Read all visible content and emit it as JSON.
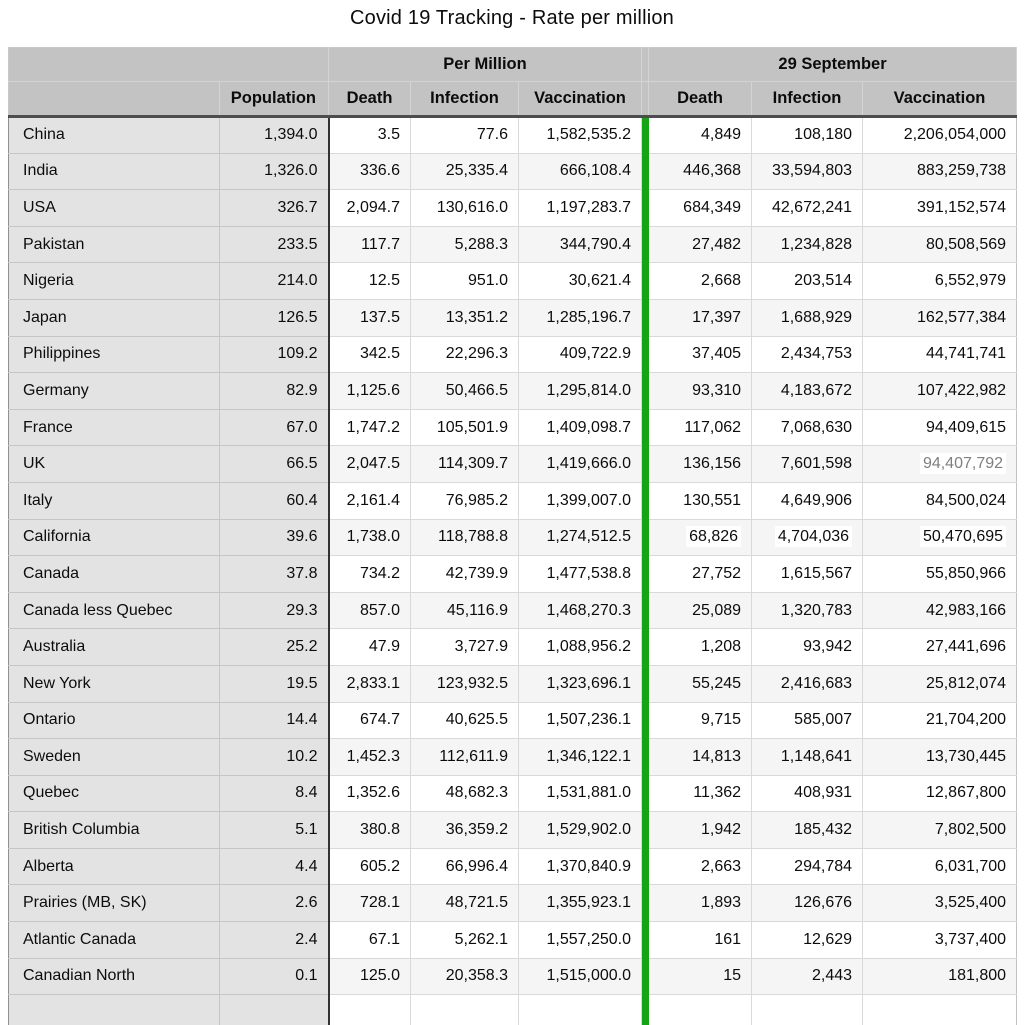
{
  "chart_data": {
    "type": "table",
    "title": "Covid 19 Tracking - Rate per million",
    "column_groups": {
      "per_million": "Per Million",
      "sep_29": "29 September"
    },
    "columns": {
      "population": "Population",
      "pm_death": "Death",
      "pm_infection": "Infection",
      "pm_vaccination": "Vaccination",
      "s_death": "Death",
      "s_infection": "Infection",
      "s_vaccination": "Vaccination"
    },
    "rows": [
      {
        "name": "China",
        "population": "1,394.0",
        "pm_death": "3.5",
        "pm_infection": "77.6",
        "pm_vaccination": "1,582,535.2",
        "s_death": "4,849",
        "s_infection": "108,180",
        "s_vaccination": "2,206,054,000"
      },
      {
        "name": "India",
        "population": "1,326.0",
        "pm_death": "336.6",
        "pm_infection": "25,335.4",
        "pm_vaccination": "666,108.4",
        "s_death": "446,368",
        "s_infection": "33,594,803",
        "s_vaccination": "883,259,738"
      },
      {
        "name": "USA",
        "population": "326.7",
        "pm_death": "2,094.7",
        "pm_infection": "130,616.0",
        "pm_vaccination": "1,197,283.7",
        "s_death": "684,349",
        "s_infection": "42,672,241",
        "s_vaccination": "391,152,574"
      },
      {
        "name": "Pakistan",
        "population": "233.5",
        "pm_death": "117.7",
        "pm_infection": "5,288.3",
        "pm_vaccination": "344,790.4",
        "s_death": "27,482",
        "s_infection": "1,234,828",
        "s_vaccination": "80,508,569"
      },
      {
        "name": "Nigeria",
        "population": "214.0",
        "pm_death": "12.5",
        "pm_infection": "951.0",
        "pm_vaccination": "30,621.4",
        "s_death": "2,668",
        "s_infection": "203,514",
        "s_vaccination": "6,552,979"
      },
      {
        "name": "Japan",
        "population": "126.5",
        "pm_death": "137.5",
        "pm_infection": "13,351.2",
        "pm_vaccination": "1,285,196.7",
        "s_death": "17,397",
        "s_infection": "1,688,929",
        "s_vaccination": "162,577,384"
      },
      {
        "name": "Philippines",
        "population": "109.2",
        "pm_death": "342.5",
        "pm_infection": "22,296.3",
        "pm_vaccination": "409,722.9",
        "s_death": "37,405",
        "s_infection": "2,434,753",
        "s_vaccination": "44,741,741"
      },
      {
        "name": "Germany",
        "population": "82.9",
        "pm_death": "1,125.6",
        "pm_infection": "50,466.5",
        "pm_vaccination": "1,295,814.0",
        "s_death": "93,310",
        "s_infection": "4,183,672",
        "s_vaccination": "107,422,982"
      },
      {
        "name": "France",
        "population": "67.0",
        "pm_death": "1,747.2",
        "pm_infection": "105,501.9",
        "pm_vaccination": "1,409,098.7",
        "s_death": "117,062",
        "s_infection": "7,068,630",
        "s_vaccination": "94,409,615"
      },
      {
        "name": "UK",
        "population": "66.5",
        "pm_death": "2,047.5",
        "pm_infection": "114,309.7",
        "pm_vaccination": "1,419,666.0",
        "s_death": "136,156",
        "s_infection": "7,601,598",
        "s_vaccination": "94,407,792",
        "s_vaccination_muted": true,
        "s_vaccination_highlight": true
      },
      {
        "name": "Italy",
        "population": "60.4",
        "pm_death": "2,161.4",
        "pm_infection": "76,985.2",
        "pm_vaccination": "1,399,007.0",
        "s_death": "130,551",
        "s_infection": "4,649,906",
        "s_vaccination": "84,500,024"
      },
      {
        "name": "California",
        "population": "39.6",
        "pm_death": "1,738.0",
        "pm_infection": "118,788.8",
        "pm_vaccination": "1,274,512.5",
        "s_death": "68,826",
        "s_infection": "4,704,036",
        "s_vaccination": "50,470,695",
        "s_cells_highlight": true
      },
      {
        "name": "Canada",
        "population": "37.8",
        "pm_death": "734.2",
        "pm_infection": "42,739.9",
        "pm_vaccination": "1,477,538.8",
        "s_death": "27,752",
        "s_infection": "1,615,567",
        "s_vaccination": "55,850,966"
      },
      {
        "name": "Canada less Quebec",
        "population": "29.3",
        "pm_death": "857.0",
        "pm_infection": "45,116.9",
        "pm_vaccination": "1,468,270.3",
        "s_death": "25,089",
        "s_infection": "1,320,783",
        "s_vaccination": "42,983,166"
      },
      {
        "name": "Australia",
        "population": "25.2",
        "pm_death": "47.9",
        "pm_infection": "3,727.9",
        "pm_vaccination": "1,088,956.2",
        "s_death": "1,208",
        "s_infection": "93,942",
        "s_vaccination": "27,441,696"
      },
      {
        "name": "New York",
        "population": "19.5",
        "pm_death": "2,833.1",
        "pm_infection": "123,932.5",
        "pm_vaccination": "1,323,696.1",
        "s_death": "55,245",
        "s_infection": "2,416,683",
        "s_vaccination": "25,812,074"
      },
      {
        "name": "Ontario",
        "population": "14.4",
        "pm_death": "674.7",
        "pm_infection": "40,625.5",
        "pm_vaccination": "1,507,236.1",
        "s_death": "9,715",
        "s_infection": "585,007",
        "s_vaccination": "21,704,200"
      },
      {
        "name": "Sweden",
        "population": "10.2",
        "pm_death": "1,452.3",
        "pm_infection": "112,611.9",
        "pm_vaccination": "1,346,122.1",
        "s_death": "14,813",
        "s_infection": "1,148,641",
        "s_vaccination": "13,730,445"
      },
      {
        "name": "Quebec",
        "population": "8.4",
        "pm_death": "1,352.6",
        "pm_infection": "48,682.3",
        "pm_vaccination": "1,531,881.0",
        "s_death": "11,362",
        "s_infection": "408,931",
        "s_vaccination": "12,867,800"
      },
      {
        "name": "British Columbia",
        "population": "5.1",
        "pm_death": "380.8",
        "pm_infection": "36,359.2",
        "pm_vaccination": "1,529,902.0",
        "s_death": "1,942",
        "s_infection": "185,432",
        "s_vaccination": "7,802,500"
      },
      {
        "name": "Alberta",
        "population": "4.4",
        "pm_death": "605.2",
        "pm_infection": "66,996.4",
        "pm_vaccination": "1,370,840.9",
        "s_death": "2,663",
        "s_infection": "294,784",
        "s_vaccination": "6,031,700"
      },
      {
        "name": "Prairies (MB, SK)",
        "population": "2.6",
        "pm_death": "728.1",
        "pm_infection": "48,721.5",
        "pm_vaccination": "1,355,923.1",
        "s_death": "1,893",
        "s_infection": "126,676",
        "s_vaccination": "3,525,400"
      },
      {
        "name": "Atlantic Canada",
        "population": "2.4",
        "pm_death": "67.1",
        "pm_infection": "5,262.1",
        "pm_vaccination": "1,557,250.0",
        "s_death": "161",
        "s_infection": "12,629",
        "s_vaccination": "3,737,400"
      },
      {
        "name": "Canadian North",
        "population": "0.1",
        "pm_death": "125.0",
        "pm_infection": "20,358.3",
        "pm_vaccination": "1,515,000.0",
        "s_death": "15",
        "s_infection": "2,443",
        "s_vaccination": "181,800"
      }
    ]
  },
  "colors": {
    "group_divider_green": "#14a414",
    "header_bg": "#c3c3c3",
    "label_column_bg": "#e3e3e3",
    "stripe_row_bg": "#f5f5f5",
    "muted_value_text": "#7f7f7f"
  }
}
